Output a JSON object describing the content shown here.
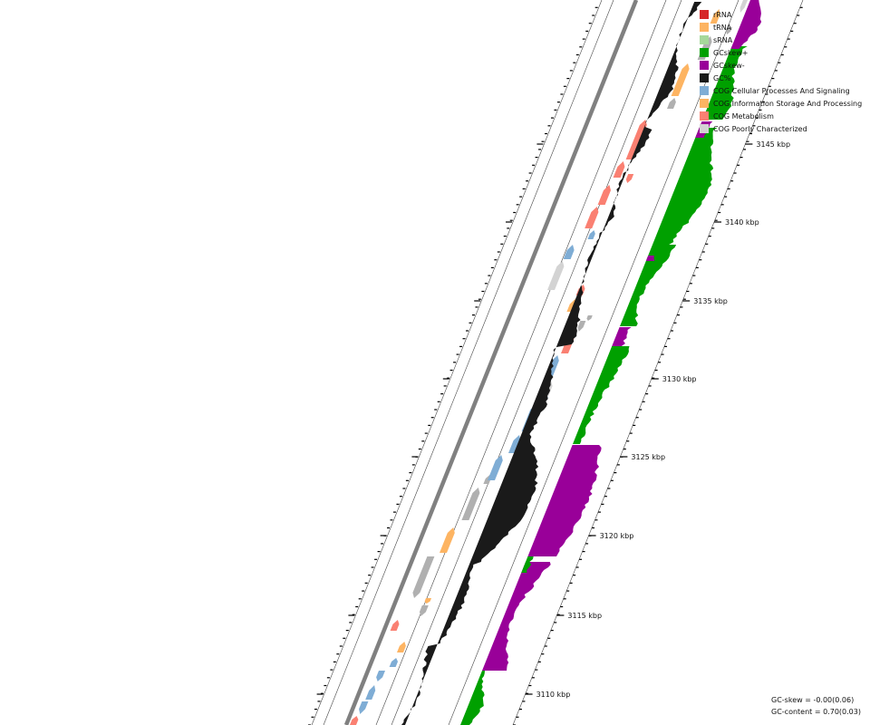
{
  "legend": {
    "items": [
      {
        "label": "rRNA",
        "color": "#d62728"
      },
      {
        "label": "tRNA",
        "color": "#fdb462"
      },
      {
        "label": "sRNA",
        "color": "#a6d89a"
      },
      {
        "label": "GCskew+",
        "color": "#00a000"
      },
      {
        "label": "GCskew-",
        "color": "#990099"
      },
      {
        "label": "GC%",
        "color": "#1a1a1a"
      },
      {
        "label": "COG Cellular Processes And Signaling",
        "color": "#7fadd5"
      },
      {
        "label": "COG Information Storage And Processing",
        "color": "#fdb462"
      },
      {
        "label": "COG Metabolism",
        "color": "#fa8072"
      },
      {
        "label": "COG Poorly Characterized",
        "color": "#d3d3d3"
      }
    ]
  },
  "axis": {
    "unit": "kbp",
    "labels": [
      "3110 kbp",
      "3115 kbp",
      "3120 kbp",
      "3125 kbp",
      "3130 kbp",
      "3135 kbp",
      "3140 kbp",
      "3145 kbp"
    ]
  },
  "stats": {
    "gc_skew": "GC-skew = -0.00(0.06)",
    "gc_content": "GC-content = 0.70(0.03)"
  },
  "colors": {
    "backbone": "#808080",
    "gene_grey": "#b0b0b0",
    "guide": "#444444"
  }
}
